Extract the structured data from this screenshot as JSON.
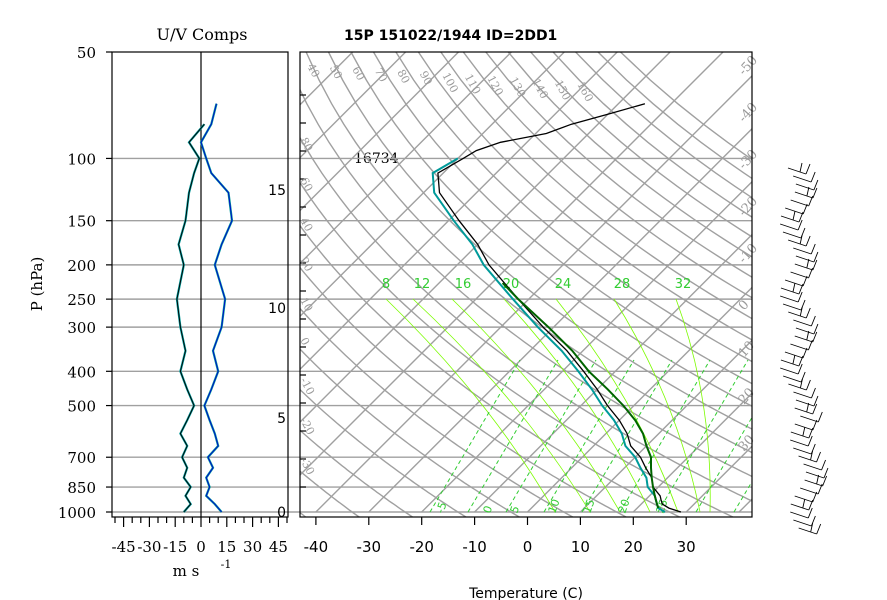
{
  "title": "15P 151022/1944 ID=2DD1",
  "uv_panel": {
    "title": "U/V Comps",
    "xlabel": "m s",
    "xlabel_exp": "-1",
    "xticks": [
      -45,
      -30,
      -15,
      0,
      15,
      30,
      45
    ],
    "xlim": [
      -50,
      50
    ]
  },
  "ylabel": "P (hPa)",
  "pressure_levels": [
    50,
    100,
    150,
    200,
    250,
    300,
    400,
    500,
    700,
    850,
    1000
  ],
  "height_ticks_km": [
    0,
    5,
    10,
    15
  ],
  "height_label": "16734",
  "xlabel": "Temperature (C)",
  "temp_ticks": [
    -40,
    -30,
    -20,
    -10,
    0,
    10,
    20,
    30
  ],
  "mixing_ratio_labels": [
    "8",
    "12",
    "16",
    "20",
    "24",
    "28",
    "32"
  ],
  "theta_labels": [
    "40",
    "50",
    "60",
    "70",
    "80",
    "90",
    "100",
    "110",
    "120",
    "130",
    "140",
    "150",
    "160"
  ],
  "isotherm_right_labels": [
    "-50",
    "-40",
    "-30",
    "-20",
    "-10",
    "0",
    "10",
    "20",
    "30"
  ],
  "skewt_ylabels_left": [
    "80",
    "60",
    "40",
    "20",
    "10",
    "0",
    "-10",
    "-20",
    "-30"
  ],
  "dry_adiabat_bottom_labels": [
    "-5",
    "0",
    "5",
    "10",
    "15",
    "20",
    "25"
  ],
  "colors": {
    "grid": "#a0a0a0",
    "temperature": "#000000",
    "dewpoint": "#009a9a",
    "parcel": "#006400",
    "mixing_ratio": "#7CFC00",
    "u_comp": "#000000",
    "v_comp": "#0000cd"
  },
  "chart_data": [
    {
      "type": "line",
      "title": "U/V Comps",
      "xlabel": "m s -1",
      "ylabel": "P (hPa)",
      "ylim": [
        1000,
        50
      ],
      "xlim": [
        -50,
        50
      ],
      "series": [
        {
          "pressure": [
            1000,
            950,
            900,
            850,
            800,
            750,
            700,
            650,
            600,
            550,
            500,
            450,
            400,
            350,
            300,
            250,
            200,
            175,
            150,
            125,
            110,
            100,
            90,
            80
          ],
          "values": [
            -10,
            -6,
            -9,
            -6,
            -10,
            -8,
            -11,
            -8,
            -12,
            -8,
            -4,
            -8,
            -12,
            -9,
            -12,
            -14,
            -10,
            -13,
            -9,
            -7,
            -4,
            -1,
            -7,
            2
          ]
        },
        {
          "pressure": [
            1000,
            950,
            900,
            850,
            800,
            750,
            700,
            650,
            600,
            550,
            500,
            450,
            400,
            350,
            300,
            250,
            200,
            175,
            150,
            125,
            110,
            100,
            90,
            80,
            70
          ],
          "values": [
            12,
            8,
            3,
            5,
            3,
            7,
            4,
            10,
            8,
            5,
            2,
            6,
            10,
            7,
            12,
            14,
            8,
            12,
            18,
            16,
            6,
            3,
            0,
            6,
            9
          ]
        }
      ]
    },
    {
      "type": "line",
      "title": "15P 151022/1944 ID=2DD1",
      "xlabel": "Temperature (C)",
      "ylabel": "P (hPa)",
      "ylim": [
        1000,
        50
      ],
      "xlim": [
        -40,
        40
      ],
      "series": [
        {
          "pressure": [
            1000,
            975,
            950,
            925,
            900,
            850,
            800,
            750,
            700,
            650,
            600,
            550,
            500,
            450,
            400,
            350,
            300,
            250,
            200,
            175,
            150,
            125,
            110,
            100,
            95,
            90,
            85,
            80,
            75,
            70
          ],
          "values": [
            29,
            26,
            24,
            23,
            22,
            19,
            17,
            14,
            11,
            7,
            4,
            0,
            -5,
            -10,
            -16,
            -23,
            -32,
            -42,
            -54,
            -60,
            -68,
            -77,
            -81,
            -79,
            -78,
            -75,
            -68,
            -65,
            -60,
            -55
          ]
        },
        {
          "pressure": [
            1000,
            975,
            950,
            925,
            900,
            850,
            800,
            750,
            700,
            650,
            600,
            550,
            500,
            450,
            400,
            350,
            300,
            250,
            200,
            175,
            150,
            125,
            110,
            100
          ],
          "values": [
            26,
            24,
            23,
            22,
            21,
            18,
            16,
            13,
            10,
            6,
            3,
            -1,
            -6,
            -11,
            -17,
            -24,
            -33,
            -43,
            -55,
            -61,
            -69,
            -78,
            -82,
            -80
          ]
        },
        {
          "pressure": [
            975,
            950,
            900,
            850,
            800,
            750,
            700,
            650,
            600,
            550,
            500,
            450,
            400,
            350,
            300,
            250,
            225
          ],
          "values": [
            24,
            23,
            21,
            19,
            17,
            15,
            13,
            10,
            7,
            3,
            -2,
            -8,
            -15,
            -22,
            -31,
            -42,
            -48
          ]
        }
      ]
    }
  ]
}
